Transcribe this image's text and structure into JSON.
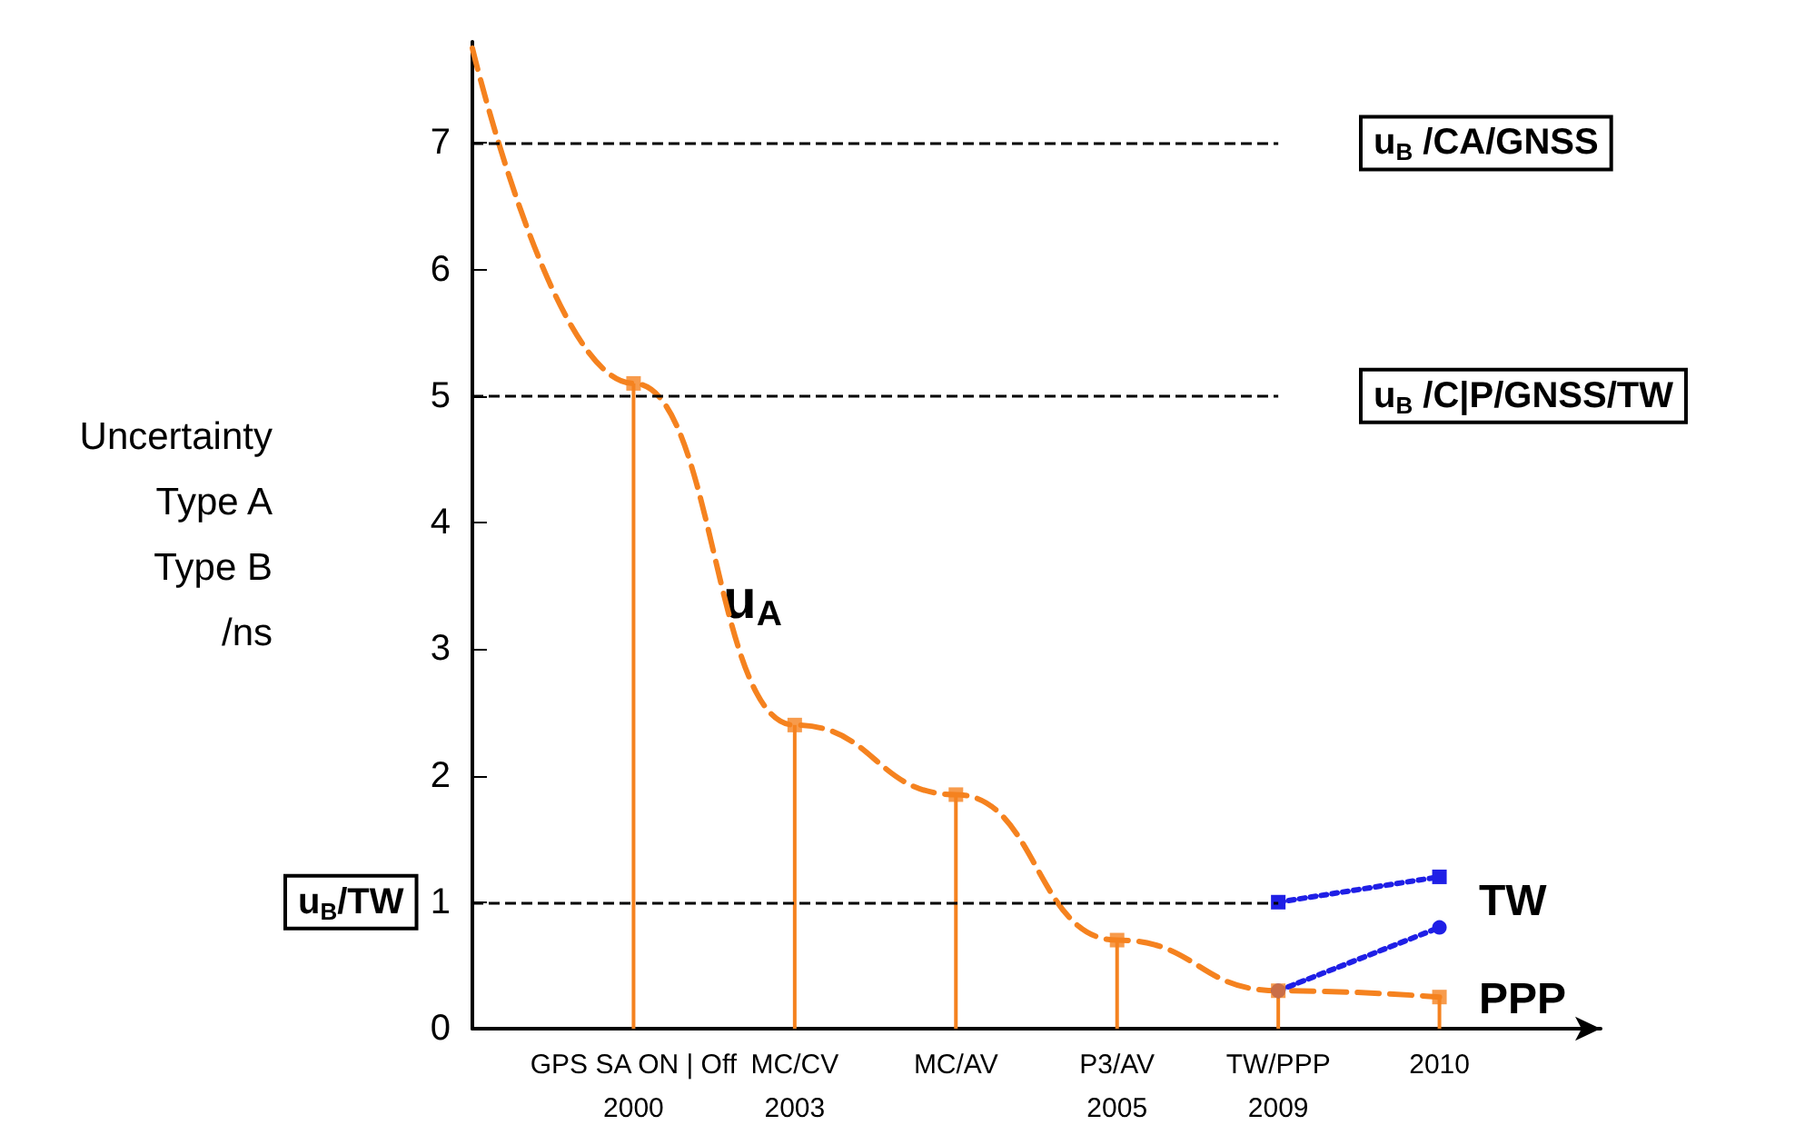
{
  "chart_data": {
    "type": "line",
    "ylabel": "Uncertainty\nType A\nType B\n/ns",
    "categories": [
      null,
      "GPS SA ON | Off\n2000",
      "MC/CV\n2003",
      "MC/AV",
      "P3/AV\n2005",
      "TW/PPP\n2009",
      "2010",
      null
    ],
    "ylim": [
      0,
      7.8
    ],
    "yticks": [
      0,
      1,
      2,
      3,
      4,
      5,
      6,
      7
    ],
    "grid": false,
    "series": [
      {
        "color": "#f5821f",
        "values": [
          7.75,
          5.1,
          2.4,
          1.85,
          0.7,
          0.3,
          0.25,
          null
        ],
        "line_style": "dashed",
        "marker": "none"
      },
      {
        "type": "lollipop",
        "color": "#f5821f",
        "values": [
          null,
          5.1,
          2.4,
          1.85,
          0.7,
          0.3,
          0.25,
          null
        ],
        "marker": "square"
      },
      {
        "color": "#1f1fe6",
        "values": [
          null,
          null,
          null,
          null,
          null,
          1.0,
          1.2,
          null
        ],
        "line_style": "dotted",
        "marker": "square"
      },
      {
        "color": "#1f1fe6",
        "values": [
          null,
          null,
          null,
          null,
          null,
          0.3,
          0.8,
          null
        ],
        "line_style": "dotted",
        "marker": "circle"
      }
    ],
    "ref_lines": [
      {
        "axis": "y",
        "value": 7,
        "label": "u$_{B}$ /CA/GNSS",
        "line_style": "dashed"
      },
      {
        "axis": "y",
        "value": 5,
        "label": "u$_{B}$ /C|P/GNSS/TW",
        "line_style": "dashed"
      },
      {
        "axis": "y",
        "value": 1,
        "label": "u$_{B}$/TW",
        "line_style": "dashed"
      }
    ],
    "annotations": [
      "u$_{A}$",
      "TW",
      "PPP"
    ]
  }
}
